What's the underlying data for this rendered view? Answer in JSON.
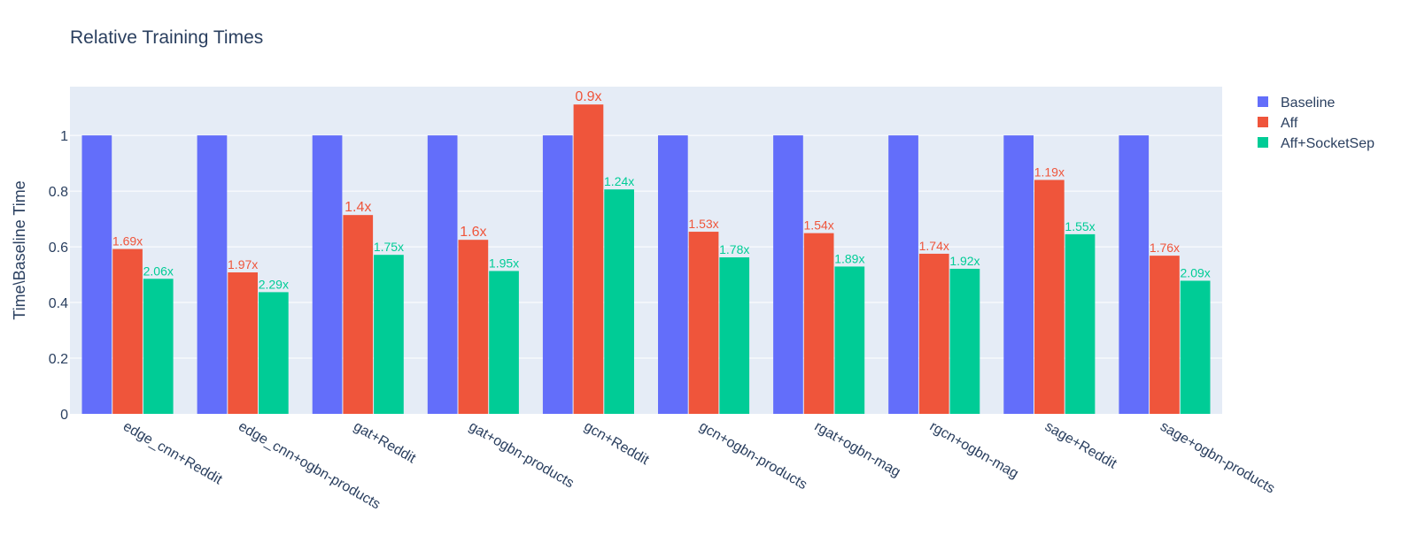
{
  "chart_data": {
    "type": "bar",
    "title": "Relative Training Times",
    "xlabel": "",
    "ylabel": "Time\\Baseline Time",
    "ylim": [
      0,
      1.175
    ],
    "yticks": [
      0,
      0.2,
      0.4,
      0.6,
      0.8,
      1
    ],
    "ytick_labels": [
      "0",
      "0.2",
      "0.4",
      "0.6",
      "0.8",
      "1"
    ],
    "grid": true,
    "legend_position": "top-right",
    "categories": [
      "edge_cnn+Reddit",
      "edge_cnn+ogbn-products",
      "gat+Reddit",
      "gat+ogbn-products",
      "gcn+Reddit",
      "gcn+ogbn-products",
      "rgat+ogbn-mag",
      "rgcn+ogbn-mag",
      "sage+Reddit",
      "sage+ogbn-products"
    ],
    "series": [
      {
        "name": "Baseline",
        "color": "#636efa",
        "values": [
          1,
          1,
          1,
          1,
          1,
          1,
          1,
          1,
          1,
          1
        ],
        "labels": []
      },
      {
        "name": "Aff",
        "color": "#ef553b",
        "values": [
          0.592,
          0.508,
          0.714,
          0.625,
          1.111,
          0.654,
          0.649,
          0.575,
          0.84,
          0.568
        ],
        "labels": [
          "1.69x",
          "1.97x",
          "1.4x",
          "1.6x",
          "0.9x",
          "1.53x",
          "1.54x",
          "1.74x",
          "1.19x",
          "1.76x"
        ]
      },
      {
        "name": "Aff+SocketSep",
        "color": "#00cc96",
        "values": [
          0.485,
          0.437,
          0.571,
          0.513,
          0.806,
          0.562,
          0.529,
          0.521,
          0.645,
          0.478
        ],
        "labels": [
          "2.06x",
          "2.29x",
          "1.75x",
          "1.95x",
          "1.24x",
          "1.78x",
          "1.89x",
          "1.92x",
          "1.55x",
          "2.09x"
        ]
      }
    ],
    "plot_background": "#e5ecf6"
  }
}
